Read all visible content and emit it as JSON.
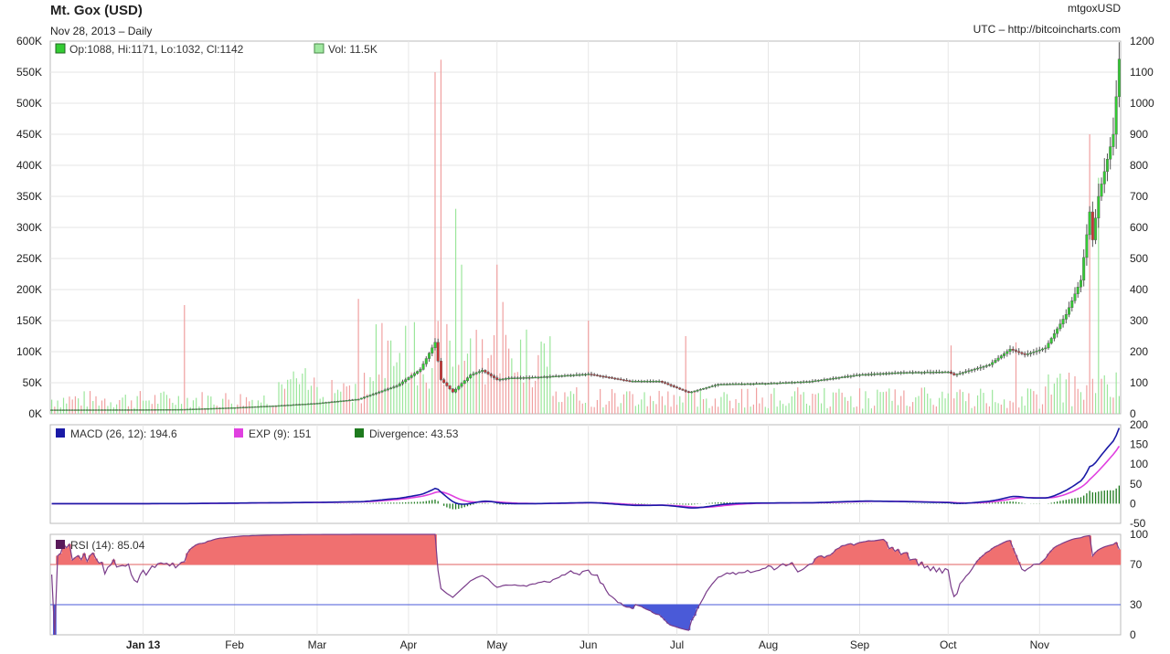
{
  "header": {
    "title": "Mt. Gox (USD)",
    "date_line": "Nov 28, 2013 – Daily",
    "symbol": "mtgoxUSD",
    "source": "UTC – http://bitcoincharts.com"
  },
  "colors": {
    "volume_up": "#9be69b",
    "volume_down": "#f0a0a0",
    "price_line": "#555555",
    "macd": "#1a1aa6",
    "exp": "#e040e0",
    "divergence": "#1e7a1e",
    "rsi_line": "#7a3c8a",
    "rsi_fill": "#f07070",
    "rsi_70": "#e06060",
    "rsi_30": "#4a5ad8",
    "grid": "#e6e6e6"
  },
  "chart_data": [
    {
      "type": "candlestick",
      "title": "Mt. Gox (USD)",
      "legend": [
        {
          "label": "Op:1088, Hi:1171, Lo:1032, Cl:1142",
          "color": "#33cc33"
        },
        {
          "label": "Vol: 11.5K",
          "color": "#a0e8a0"
        }
      ],
      "left_axis_ticks": [
        "0K",
        "50K",
        "100K",
        "150K",
        "200K",
        "250K",
        "300K",
        "350K",
        "400K",
        "450K",
        "500K",
        "550K",
        "600K"
      ],
      "right_axis_ticks": [
        "0",
        "100",
        "200",
        "300",
        "400",
        "500",
        "600",
        "700",
        "800",
        "900",
        "1000",
        "1100",
        "1200"
      ],
      "volume_ylim": [
        0,
        600000
      ],
      "price_ylim": [
        0,
        1200
      ],
      "x_months": [
        "Jan 13",
        "Feb",
        "Mar",
        "Apr",
        "May",
        "Jun",
        "Jul",
        "Aug",
        "Sep",
        "Oct",
        "Nov"
      ],
      "x_range": [
        "2012-12-01",
        "2013-11-28"
      ],
      "price_keypoints": [
        [
          "2012-12-01",
          13
        ],
        [
          "2013-01-01",
          13.5
        ],
        [
          "2013-01-15",
          14.5
        ],
        [
          "2013-02-01",
          20
        ],
        [
          "2013-02-15",
          26
        ],
        [
          "2013-03-01",
          34
        ],
        [
          "2013-03-15",
          47
        ],
        [
          "2013-03-28",
          90
        ],
        [
          "2013-04-05",
          143
        ],
        [
          "2013-04-10",
          230
        ],
        [
          "2013-04-12",
          110
        ],
        [
          "2013-04-16",
          70
        ],
        [
          "2013-04-22",
          125
        ],
        [
          "2013-04-26",
          140
        ],
        [
          "2013-05-01",
          110
        ],
        [
          "2013-05-05",
          115
        ],
        [
          "2013-05-15",
          118
        ],
        [
          "2013-06-01",
          128
        ],
        [
          "2013-06-15",
          105
        ],
        [
          "2013-06-25",
          105
        ],
        [
          "2013-07-05",
          68
        ],
        [
          "2013-07-15",
          95
        ],
        [
          "2013-08-01",
          98
        ],
        [
          "2013-08-15",
          104
        ],
        [
          "2013-09-01",
          126
        ],
        [
          "2013-09-15",
          133
        ],
        [
          "2013-10-01",
          135
        ],
        [
          "2013-10-03",
          125
        ],
        [
          "2013-10-15",
          158
        ],
        [
          "2013-10-22",
          208
        ],
        [
          "2013-10-27",
          190
        ],
        [
          "2013-11-03",
          212
        ],
        [
          "2013-11-10",
          320
        ],
        [
          "2013-11-15",
          430
        ],
        [
          "2013-11-18",
          650
        ],
        [
          "2013-11-19",
          560
        ],
        [
          "2013-11-21",
          700
        ],
        [
          "2013-11-24",
          820
        ],
        [
          "2013-11-26",
          900
        ],
        [
          "2013-11-28",
          1142
        ]
      ],
      "volume_spikes": [
        [
          "2013-01-15",
          175000,
          "down"
        ],
        [
          "2013-03-15",
          185000,
          "down"
        ],
        [
          "2013-04-10",
          550000,
          "down"
        ],
        [
          "2013-04-12",
          570000,
          "down"
        ],
        [
          "2013-04-17",
          330000,
          "up"
        ],
        [
          "2013-04-19",
          240000,
          "up"
        ],
        [
          "2013-05-01",
          240000,
          "down"
        ],
        [
          "2013-05-03",
          180000,
          "down"
        ],
        [
          "2013-06-01",
          150000,
          "down"
        ],
        [
          "2013-07-04",
          125000,
          "down"
        ],
        [
          "2013-10-02",
          110000,
          "down"
        ],
        [
          "2013-10-24",
          115000,
          "down"
        ],
        [
          "2013-11-18",
          450000,
          "down"
        ],
        [
          "2013-11-21",
          380000,
          "up"
        ]
      ]
    },
    {
      "type": "line",
      "title": "MACD",
      "legend": [
        {
          "label": "MACD (26, 12): 194.6",
          "color": "#1a1aa6"
        },
        {
          "label": "EXP (9): 151",
          "color": "#e040e0"
        },
        {
          "label": "Divergence: 43.53",
          "color": "#1e7a1e"
        }
      ],
      "right_axis_ticks": [
        "-50",
        "0",
        "50",
        "100",
        "150",
        "200"
      ],
      "ylim": [
        -50,
        200
      ],
      "last_values": {
        "macd": 194.6,
        "exp": 151,
        "divergence": 43.53
      }
    },
    {
      "type": "line",
      "title": "RSI",
      "legend": [
        {
          "label": "RSI (14): 85.04",
          "color": "#5a1a5a"
        }
      ],
      "right_axis_ticks": [
        "0",
        "30",
        "70",
        "100"
      ],
      "ylim": [
        0,
        100
      ],
      "reference_lines": [
        70,
        30
      ],
      "last_value": 85.04
    }
  ]
}
